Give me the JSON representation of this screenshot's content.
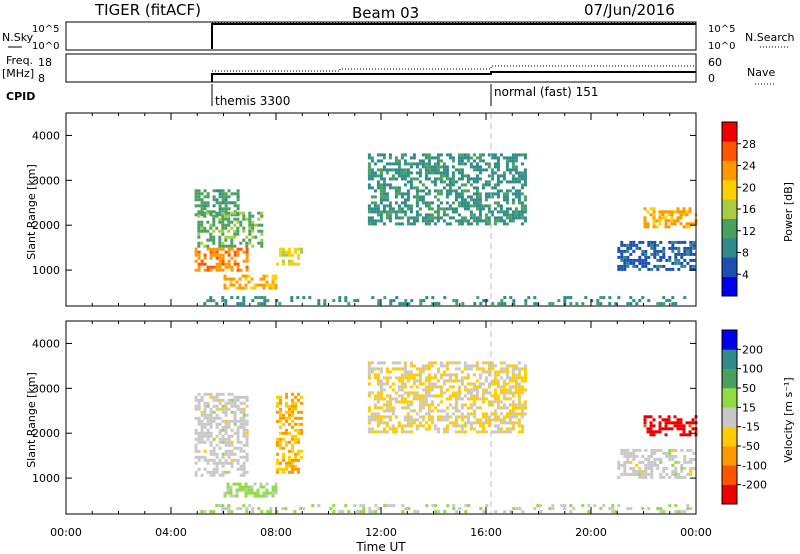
{
  "header": {
    "title": "TIGER (fitACF)",
    "beam": "Beam 03",
    "date": "07/Jun/2016"
  },
  "panels": {
    "nsky": {
      "label": "N.Sky",
      "ytick_top": "10^5",
      "ytick_bottom": "10^0",
      "right_top": "10^5",
      "right_bottom": "10^0",
      "right_label": "N.Search"
    },
    "freq": {
      "label_line1": "Freq.",
      "label_line2": "[MHz]",
      "ytick_top": "18",
      "ytick_bottom": "8",
      "right_top": "60",
      "right_bottom": "0",
      "right_label": "Nave"
    },
    "cpid": {
      "label": "CPID",
      "segments": [
        {
          "start": "05:00",
          "name": "themis 3300"
        },
        {
          "start": "16:00",
          "name": "normal (fast) 151"
        }
      ]
    }
  },
  "colors": {
    "power_scale": [
      "#0000ee",
      "#1e4fb0",
      "#2f8a8a",
      "#4aa060",
      "#a8cc44",
      "#ffd000",
      "#ff9900",
      "#ff5500",
      "#ee0000"
    ],
    "velocity_scale": [
      "#ee0000",
      "#ff5500",
      "#ff9900",
      "#ffcc00",
      "#c8c8c8",
      "#8fdc44",
      "#4aa060",
      "#2f8a8a",
      "#0000ee"
    ]
  },
  "chart_data": [
    {
      "type": "heatmap",
      "name": "power",
      "ylabel": "Slant Range [km]",
      "yticks": [
        1000,
        2000,
        3000,
        4000
      ],
      "ylim": [
        200,
        4500
      ],
      "xlim_hours": [
        0,
        24
      ],
      "colorbar": {
        "label": "Power [dB]",
        "ticks": [
          "4",
          "8",
          "12",
          "16",
          "20",
          "24",
          "28"
        ],
        "range": [
          0,
          32
        ]
      },
      "regions": [
        {
          "t0": 4.9,
          "t1": 6.6,
          "r0": 2200,
          "r1": 2800,
          "value": 12
        },
        {
          "t0": 5.0,
          "t1": 7.5,
          "r0": 1500,
          "r1": 2300,
          "value": 14
        },
        {
          "t0": 4.9,
          "t1": 6.9,
          "r0": 950,
          "r1": 1500,
          "value": 24
        },
        {
          "t0": 6.0,
          "t1": 8.0,
          "r0": 550,
          "r1": 900,
          "value": 22
        },
        {
          "t0": 8.0,
          "t1": 9.0,
          "r0": 1100,
          "r1": 1500,
          "value": 18
        },
        {
          "t0": 5.0,
          "t1": 24.0,
          "r0": 200,
          "r1": 420,
          "value": 10
        },
        {
          "t0": 21.0,
          "t1": 24.0,
          "r0": 1000,
          "r1": 1650,
          "value": 6
        },
        {
          "t0": 22.0,
          "t1": 24.0,
          "r0": 1900,
          "r1": 2400,
          "value": 22
        },
        {
          "t0": 11.5,
          "t1": 17.5,
          "r0": 2000,
          "r1": 3600,
          "value": 10
        }
      ]
    },
    {
      "type": "heatmap",
      "name": "velocity",
      "ylabel": "Slant Range [km]",
      "yticks": [
        1000,
        2000,
        3000,
        4000
      ],
      "ylim": [
        200,
        4500
      ],
      "xlim_hours": [
        0,
        24
      ],
      "colorbar": {
        "label": "Velocity [m s⁻¹]",
        "ticks": [
          "-200",
          "-100",
          "-50",
          "-15",
          "15",
          "50",
          "100",
          "200"
        ],
        "range": [
          -250,
          250
        ]
      },
      "regions": [
        {
          "t0": 4.9,
          "t1": 6.9,
          "r0": 1000,
          "r1": 2900,
          "value": 0
        },
        {
          "t0": 6.0,
          "t1": 8.0,
          "r0": 550,
          "r1": 900,
          "value": 40
        },
        {
          "t0": 8.0,
          "t1": 9.0,
          "r0": 1100,
          "r1": 2900,
          "value": -80
        },
        {
          "t0": 5.0,
          "t1": 24.0,
          "r0": 200,
          "r1": 420,
          "value": 30
        },
        {
          "t0": 21.0,
          "t1": 24.0,
          "r0": 1000,
          "r1": 1650,
          "value": 0
        },
        {
          "t0": 22.0,
          "t1": 24.0,
          "r0": 1900,
          "r1": 2400,
          "value": -220
        },
        {
          "t0": 11.5,
          "t1": 17.5,
          "r0": 2000,
          "r1": 3600,
          "value": -30
        }
      ]
    }
  ],
  "xaxis": {
    "label": "Time UT",
    "ticks": [
      "00:00",
      "04:00",
      "08:00",
      "12:00",
      "16:00",
      "20:00",
      "00:00"
    ]
  }
}
